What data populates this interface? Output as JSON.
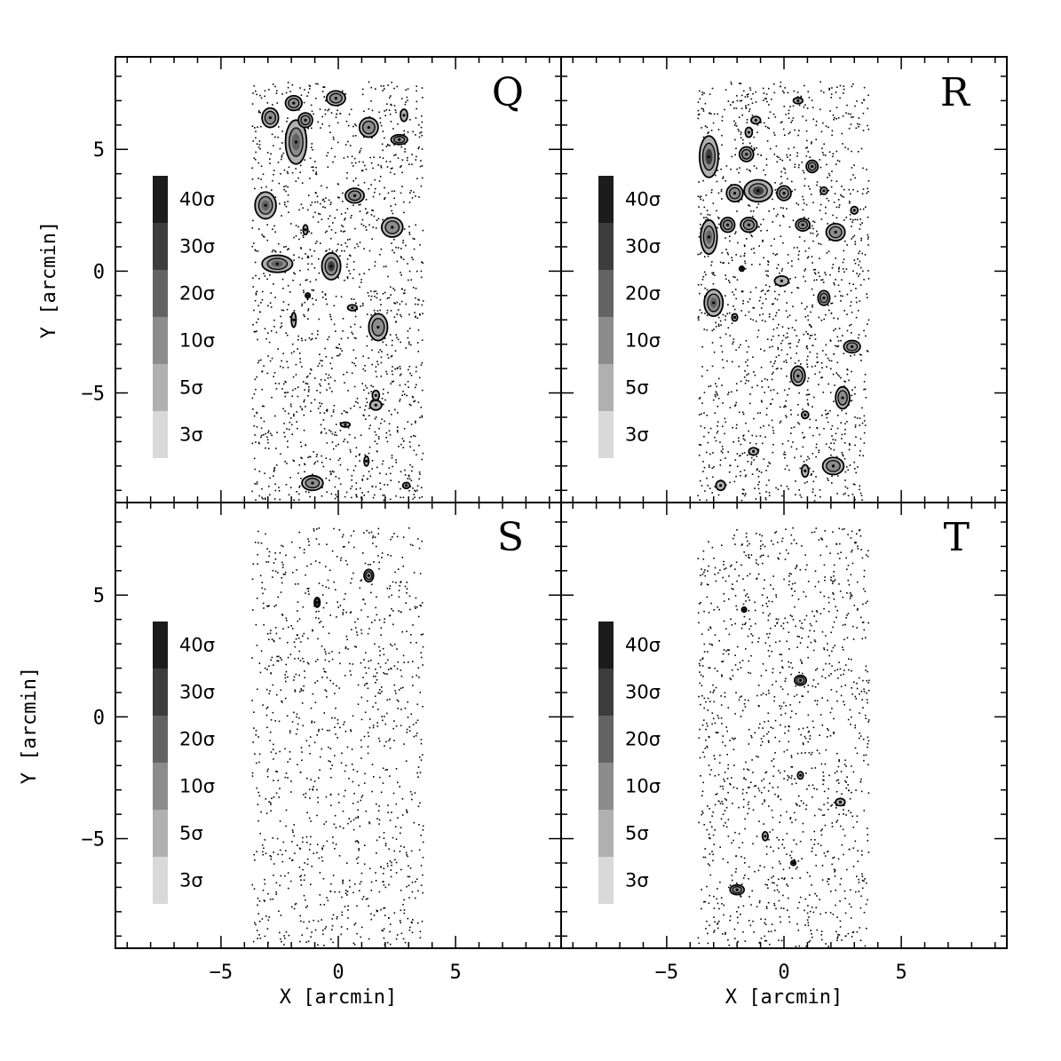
{
  "chart_data": {
    "type": "scatter",
    "x_label": "X [arcmin]",
    "y_label": "Y [arcmin]",
    "xlim": [
      -9.5,
      9.5
    ],
    "ylim": [
      -9.5,
      8.8
    ],
    "x_ticks": [
      {
        "value": -5,
        "label": "−5"
      },
      {
        "value": 0,
        "label": "0"
      },
      {
        "value": 5,
        "label": "5"
      }
    ],
    "y_ticks": [
      {
        "value": 5,
        "label": "5"
      },
      {
        "value": 0,
        "label": "0"
      },
      {
        "value": -5,
        "label": "−5"
      }
    ],
    "field_of_view": {
      "x": [
        -3.7,
        3.6
      ],
      "y": [
        -9.4,
        7.8
      ]
    },
    "legend": {
      "levels": [
        {
          "label": "40σ",
          "color": "#1c1c1c"
        },
        {
          "label": "30σ",
          "color": "#3d3d3d"
        },
        {
          "label": "20σ",
          "color": "#636363"
        },
        {
          "label": "10σ",
          "color": "#8c8c8c"
        },
        {
          "label": "5σ",
          "color": "#b0b0b0"
        },
        {
          "label": "3σ",
          "color": "#d9d9d9"
        }
      ]
    },
    "panels": [
      {
        "id": "Q",
        "label": "Q",
        "background_density": 1500,
        "sources": [
          {
            "x": -2.9,
            "y": 6.3,
            "rx": 0.35,
            "ry": 0.4,
            "peak": 10
          },
          {
            "x": -1.9,
            "y": 6.9,
            "rx": 0.35,
            "ry": 0.3,
            "peak": 10
          },
          {
            "x": -1.8,
            "y": 5.3,
            "rx": 0.45,
            "ry": 0.9,
            "peak": 20
          },
          {
            "x": -1.4,
            "y": 6.2,
            "rx": 0.3,
            "ry": 0.3,
            "peak": 10
          },
          {
            "x": -0.1,
            "y": 7.1,
            "rx": 0.4,
            "ry": 0.3,
            "peak": 10
          },
          {
            "x": 1.3,
            "y": 5.9,
            "rx": 0.4,
            "ry": 0.4,
            "peak": 10
          },
          {
            "x": 2.6,
            "y": 5.4,
            "rx": 0.35,
            "ry": 0.2,
            "peak": 10
          },
          {
            "x": 2.8,
            "y": 6.4,
            "rx": 0.15,
            "ry": 0.25,
            "peak": 5
          },
          {
            "x": -3.1,
            "y": 2.7,
            "rx": 0.45,
            "ry": 0.55,
            "peak": 20
          },
          {
            "x": 0.7,
            "y": 3.1,
            "rx": 0.4,
            "ry": 0.3,
            "peak": 10
          },
          {
            "x": 2.3,
            "y": 1.8,
            "rx": 0.45,
            "ry": 0.4,
            "peak": 10
          },
          {
            "x": -1.4,
            "y": 1.7,
            "rx": 0.1,
            "ry": 0.2,
            "peak": 5
          },
          {
            "x": -2.6,
            "y": 0.3,
            "rx": 0.65,
            "ry": 0.35,
            "peak": 20
          },
          {
            "x": -0.3,
            "y": 0.2,
            "rx": 0.4,
            "ry": 0.55,
            "peak": 30
          },
          {
            "x": -1.3,
            "y": -1.0,
            "rx": 0.1,
            "ry": 0.1,
            "peak": 5
          },
          {
            "x": 0.6,
            "y": -1.5,
            "rx": 0.2,
            "ry": 0.12,
            "peak": 5
          },
          {
            "x": -1.9,
            "y": -2.0,
            "rx": 0.1,
            "ry": 0.3,
            "peak": 5
          },
          {
            "x": 1.7,
            "y": -2.3,
            "rx": 0.4,
            "ry": 0.55,
            "peak": 10
          },
          {
            "x": 1.6,
            "y": -5.1,
            "rx": 0.15,
            "ry": 0.2,
            "peak": 5
          },
          {
            "x": 1.6,
            "y": -5.5,
            "rx": 0.25,
            "ry": 0.2,
            "peak": 5
          },
          {
            "x": 0.3,
            "y": -6.3,
            "rx": 0.2,
            "ry": 0.1,
            "peak": 5
          },
          {
            "x": 1.2,
            "y": -7.8,
            "rx": 0.1,
            "ry": 0.2,
            "peak": 5
          },
          {
            "x": -1.1,
            "y": -8.7,
            "rx": 0.45,
            "ry": 0.3,
            "peak": 10
          },
          {
            "x": 2.9,
            "y": -8.8,
            "rx": 0.15,
            "ry": 0.12,
            "peak": 5
          }
        ]
      },
      {
        "id": "R",
        "label": "R",
        "background_density": 1500,
        "sources": [
          {
            "x": -3.2,
            "y": 4.7,
            "rx": 0.4,
            "ry": 0.85,
            "peak": 30
          },
          {
            "x": -1.5,
            "y": 5.7,
            "rx": 0.15,
            "ry": 0.2,
            "peak": 5
          },
          {
            "x": -1.6,
            "y": 4.8,
            "rx": 0.3,
            "ry": 0.3,
            "peak": 10
          },
          {
            "x": -1.2,
            "y": 6.2,
            "rx": 0.2,
            "ry": 0.15,
            "peak": 5
          },
          {
            "x": 0.6,
            "y": 7.0,
            "rx": 0.2,
            "ry": 0.12,
            "peak": 5
          },
          {
            "x": 1.2,
            "y": 4.3,
            "rx": 0.25,
            "ry": 0.25,
            "peak": 10
          },
          {
            "x": -1.1,
            "y": 3.3,
            "rx": 0.6,
            "ry": 0.45,
            "peak": 30
          },
          {
            "x": -2.1,
            "y": 3.2,
            "rx": 0.35,
            "ry": 0.35,
            "peak": 10
          },
          {
            "x": 0.0,
            "y": 3.2,
            "rx": 0.3,
            "ry": 0.3,
            "peak": 10
          },
          {
            "x": 1.7,
            "y": 3.3,
            "rx": 0.15,
            "ry": 0.15,
            "peak": 5
          },
          {
            "x": -3.2,
            "y": 1.4,
            "rx": 0.35,
            "ry": 0.7,
            "peak": 20
          },
          {
            "x": -2.4,
            "y": 1.9,
            "rx": 0.3,
            "ry": 0.3,
            "peak": 10
          },
          {
            "x": -1.5,
            "y": 1.9,
            "rx": 0.35,
            "ry": 0.3,
            "peak": 10
          },
          {
            "x": 0.8,
            "y": 1.9,
            "rx": 0.3,
            "ry": 0.25,
            "peak": 10
          },
          {
            "x": 2.2,
            "y": 1.6,
            "rx": 0.4,
            "ry": 0.35,
            "peak": 10
          },
          {
            "x": 3.0,
            "y": 2.5,
            "rx": 0.15,
            "ry": 0.15,
            "peak": 5
          },
          {
            "x": -0.1,
            "y": -0.4,
            "rx": 0.3,
            "ry": 0.2,
            "peak": 5
          },
          {
            "x": -1.8,
            "y": 0.1,
            "rx": 0.1,
            "ry": 0.1,
            "peak": 5
          },
          {
            "x": -3.0,
            "y": -1.3,
            "rx": 0.4,
            "ry": 0.55,
            "peak": 20
          },
          {
            "x": -2.1,
            "y": -1.9,
            "rx": 0.12,
            "ry": 0.15,
            "peak": 5
          },
          {
            "x": 1.7,
            "y": -1.1,
            "rx": 0.25,
            "ry": 0.3,
            "peak": 10
          },
          {
            "x": 2.9,
            "y": -3.1,
            "rx": 0.35,
            "ry": 0.25,
            "peak": 10
          },
          {
            "x": 0.6,
            "y": -4.3,
            "rx": 0.3,
            "ry": 0.4,
            "peak": 10
          },
          {
            "x": 2.5,
            "y": -5.2,
            "rx": 0.3,
            "ry": 0.45,
            "peak": 10
          },
          {
            "x": 0.9,
            "y": -5.9,
            "rx": 0.15,
            "ry": 0.15,
            "peak": 5
          },
          {
            "x": -1.3,
            "y": -7.4,
            "rx": 0.2,
            "ry": 0.15,
            "peak": 5
          },
          {
            "x": 0.9,
            "y": -8.2,
            "rx": 0.15,
            "ry": 0.25,
            "peak": 5
          },
          {
            "x": 2.1,
            "y": -8.0,
            "rx": 0.45,
            "ry": 0.35,
            "peak": 10
          },
          {
            "x": -2.7,
            "y": -8.8,
            "rx": 0.2,
            "ry": 0.2,
            "peak": 5
          }
        ]
      },
      {
        "id": "S",
        "label": "S",
        "background_density": 1100,
        "sources": [
          {
            "x": 1.3,
            "y": 5.8,
            "rx": 0.2,
            "ry": 0.25,
            "peak": 10
          },
          {
            "x": -0.9,
            "y": 4.7,
            "rx": 0.12,
            "ry": 0.2,
            "peak": 10
          }
        ]
      },
      {
        "id": "T",
        "label": "T",
        "background_density": 1300,
        "sources": [
          {
            "x": 0.7,
            "y": 1.5,
            "rx": 0.25,
            "ry": 0.2,
            "peak": 10
          },
          {
            "x": -1.7,
            "y": 4.4,
            "rx": 0.1,
            "ry": 0.1,
            "peak": 5
          },
          {
            "x": 0.7,
            "y": -2.4,
            "rx": 0.12,
            "ry": 0.15,
            "peak": 5
          },
          {
            "x": 2.4,
            "y": -3.5,
            "rx": 0.2,
            "ry": 0.15,
            "peak": 5
          },
          {
            "x": -0.8,
            "y": -4.9,
            "rx": 0.12,
            "ry": 0.18,
            "peak": 5
          },
          {
            "x": 0.4,
            "y": -6.0,
            "rx": 0.1,
            "ry": 0.1,
            "peak": 5
          },
          {
            "x": -2.0,
            "y": -7.1,
            "rx": 0.3,
            "ry": 0.2,
            "peak": 10
          }
        ]
      }
    ]
  }
}
